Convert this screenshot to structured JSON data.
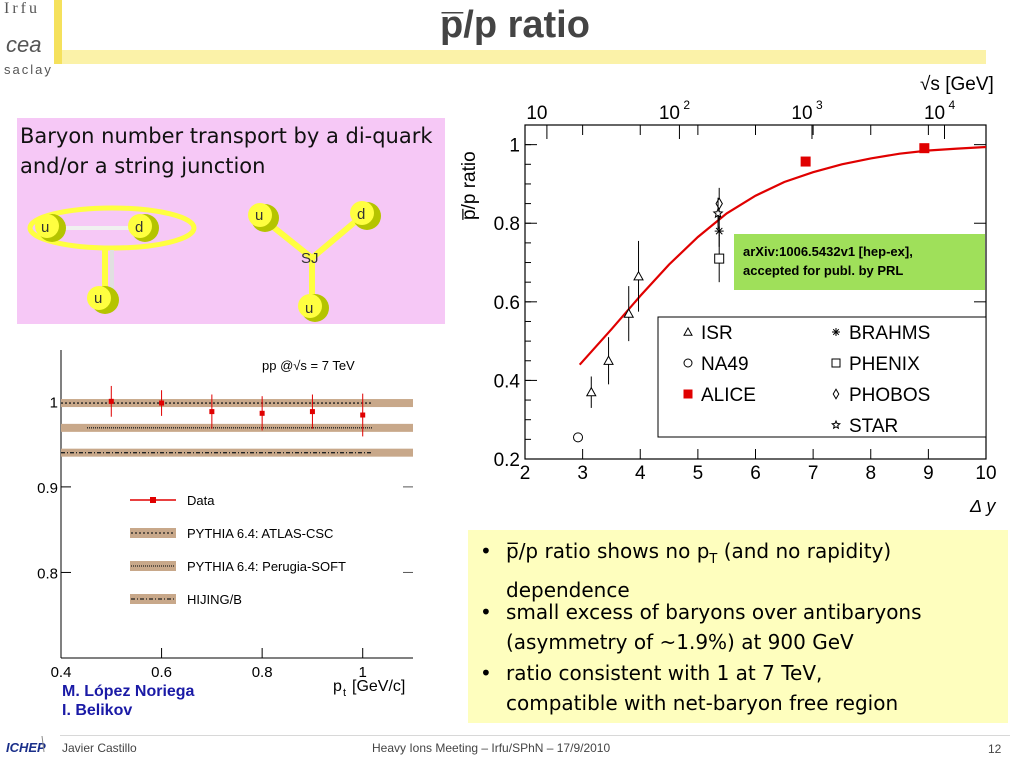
{
  "header": {
    "title": "p̅/p ratio",
    "logo_top": "Irfu",
    "logo_bottom": "saclay"
  },
  "pink_box": {
    "text": "Baryon number transport by a di-quark and/or a string junction",
    "diagram_labels": {
      "u1": "u",
      "d1": "d",
      "u2": "u",
      "u3": "u",
      "d2": "d",
      "sj": "SJ",
      "u4": "u"
    }
  },
  "arxiv_note": {
    "line1": "arXiv:1006.5432v1  [hep-ex],",
    "line2": "accepted for publ. by PRL"
  },
  "bullets": [
    {
      "line1": "p̅/p ratio shows no p",
      "sub": "T",
      "line1b": " (and no rapidity)",
      "line2": "dependence"
    },
    {
      "line1": "small excess of baryons over antibaryons",
      "line2": "(asymmetry of ~1.9%) at 900 GeV"
    },
    {
      "line1": "ratio consistent with 1 at 7 TeV,",
      "line2": "compatible with net-baryon free region"
    }
  ],
  "authors": [
    "M. López Noriega",
    "I. Belikov"
  ],
  "footer": {
    "left": "Javier Castillo",
    "center": "Heavy Ions Meeting – Irfu/SPhN – 17/9/2010",
    "page": "12",
    "logo": "ICHEP"
  },
  "chart_data": [
    {
      "type": "scatter",
      "title": "",
      "ylabel": "p̅/p ratio",
      "xlabel": "Δ y",
      "top_axis_label": "√s [GeV]",
      "xlim": [
        2,
        10
      ],
      "ylim": [
        0.2,
        1.05
      ],
      "x_ticks": [
        "2",
        "3",
        "4",
        "5",
        "6",
        "7",
        "8",
        "9",
        "10"
      ],
      "y_ticks": [
        "0.2",
        "0.4",
        "0.6",
        "0.8",
        "1"
      ],
      "top_ticks": [
        {
          "label": "10",
          "sup": "",
          "x": 2.38
        },
        {
          "label": "10",
          "sup": "2",
          "x": 4.68
        },
        {
          "label": "10",
          "sup": "3",
          "x": 6.98
        },
        {
          "label": "10",
          "sup": "4",
          "x": 9.28
        }
      ],
      "legend": [
        {
          "name": "ISR",
          "marker": "triangle"
        },
        {
          "name": "BRAHMS",
          "marker": "asterisk"
        },
        {
          "name": "NA49",
          "marker": "circle"
        },
        {
          "name": "PHENIX",
          "marker": "square"
        },
        {
          "name": "ALICE",
          "marker": "filled-square"
        },
        {
          "name": "PHOBOS",
          "marker": "diamond"
        },
        {
          "name": "",
          "marker": ""
        },
        {
          "name": "STAR",
          "marker": "star"
        }
      ],
      "legend_placement": "lower-right",
      "series": [
        {
          "name": "ISR",
          "marker": "triangle",
          "points": [
            {
              "x": 3.15,
              "y": 0.37,
              "err": 0.04
            },
            {
              "x": 3.45,
              "y": 0.45,
              "err": 0.06
            },
            {
              "x": 3.8,
              "y": 0.57,
              "err": 0.07
            },
            {
              "x": 3.97,
              "y": 0.665,
              "err": 0.09
            }
          ]
        },
        {
          "name": "NA49",
          "marker": "circle",
          "points": [
            {
              "x": 2.92,
              "y": 0.255,
              "err": 0
            }
          ]
        },
        {
          "name": "ALICE",
          "marker": "filled-square",
          "color": "#e00000",
          "points": [
            {
              "x": 6.87,
              "y": 0.957,
              "err": 0.008
            },
            {
              "x": 8.93,
              "y": 0.991,
              "err": 0.008
            }
          ]
        },
        {
          "name": "BRAHMS",
          "marker": "asterisk",
          "points": [
            {
              "x": 5.37,
              "y": 0.78,
              "err": 0.04
            }
          ]
        },
        {
          "name": "PHENIX",
          "marker": "square",
          "points": [
            {
              "x": 5.37,
              "y": 0.71,
              "err": 0.06
            }
          ]
        },
        {
          "name": "PHOBOS",
          "marker": "diamond",
          "points": [
            {
              "x": 5.37,
              "y": 0.85,
              "err": 0.04
            }
          ]
        },
        {
          "name": "STAR",
          "marker": "star",
          "points": [
            {
              "x": 5.35,
              "y": 0.825,
              "err": 0.04
            }
          ]
        }
      ],
      "fit_curve": {
        "color": "#e00000",
        "x": [
          2.95,
          3.5,
          4.0,
          4.5,
          5.0,
          5.5,
          6.0,
          6.5,
          7.0,
          7.5,
          8.0,
          8.5,
          9.0,
          9.5,
          10.0
        ],
        "y": [
          0.44,
          0.53,
          0.615,
          0.695,
          0.765,
          0.825,
          0.87,
          0.905,
          0.93,
          0.95,
          0.965,
          0.977,
          0.985,
          0.99,
          0.994
        ]
      }
    },
    {
      "type": "line",
      "title": "pp @√s = 7 TeV",
      "xlabel": "p",
      "xlabel_sub": "t",
      "xlabel_unit": " [GeV/c]",
      "xlim": [
        0.4,
        1.1
      ],
      "ylim": [
        0.7,
        1.06
      ],
      "x_ticks": [
        "0.4",
        "0.6",
        "0.8",
        "1"
      ],
      "y_ticks": [
        "0.8",
        "0.9",
        "1"
      ],
      "series": [
        {
          "name": "Data",
          "color": "#e00000",
          "points": [
            {
              "x": 0.5,
              "y": 1.0,
              "err": 0.018
            },
            {
              "x": 0.6,
              "y": 0.998,
              "err": 0.015
            },
            {
              "x": 0.7,
              "y": 0.988,
              "err": 0.02
            },
            {
              "x": 0.8,
              "y": 0.986,
              "err": 0.02
            },
            {
              "x": 0.9,
              "y": 0.988,
              "err": 0.02
            },
            {
              "x": 1.0,
              "y": 0.984,
              "err": 0.025
            }
          ]
        }
      ],
      "bands": [
        {
          "name": "PYTHIA 6.4: ATLAS-CSC",
          "y": 0.998,
          "style": "dotted"
        },
        {
          "name": "PYTHIA 6.4: Perugia-SOFT",
          "y": 0.969,
          "style": "dotted-fine"
        },
        {
          "name": "HIJING/B",
          "y": 0.94,
          "style": "dashdot"
        }
      ],
      "legend": [
        "Data",
        "PYTHIA 6.4: ATLAS-CSC",
        "PYTHIA 6.4: Perugia-SOFT",
        "HIJING/B"
      ]
    }
  ]
}
